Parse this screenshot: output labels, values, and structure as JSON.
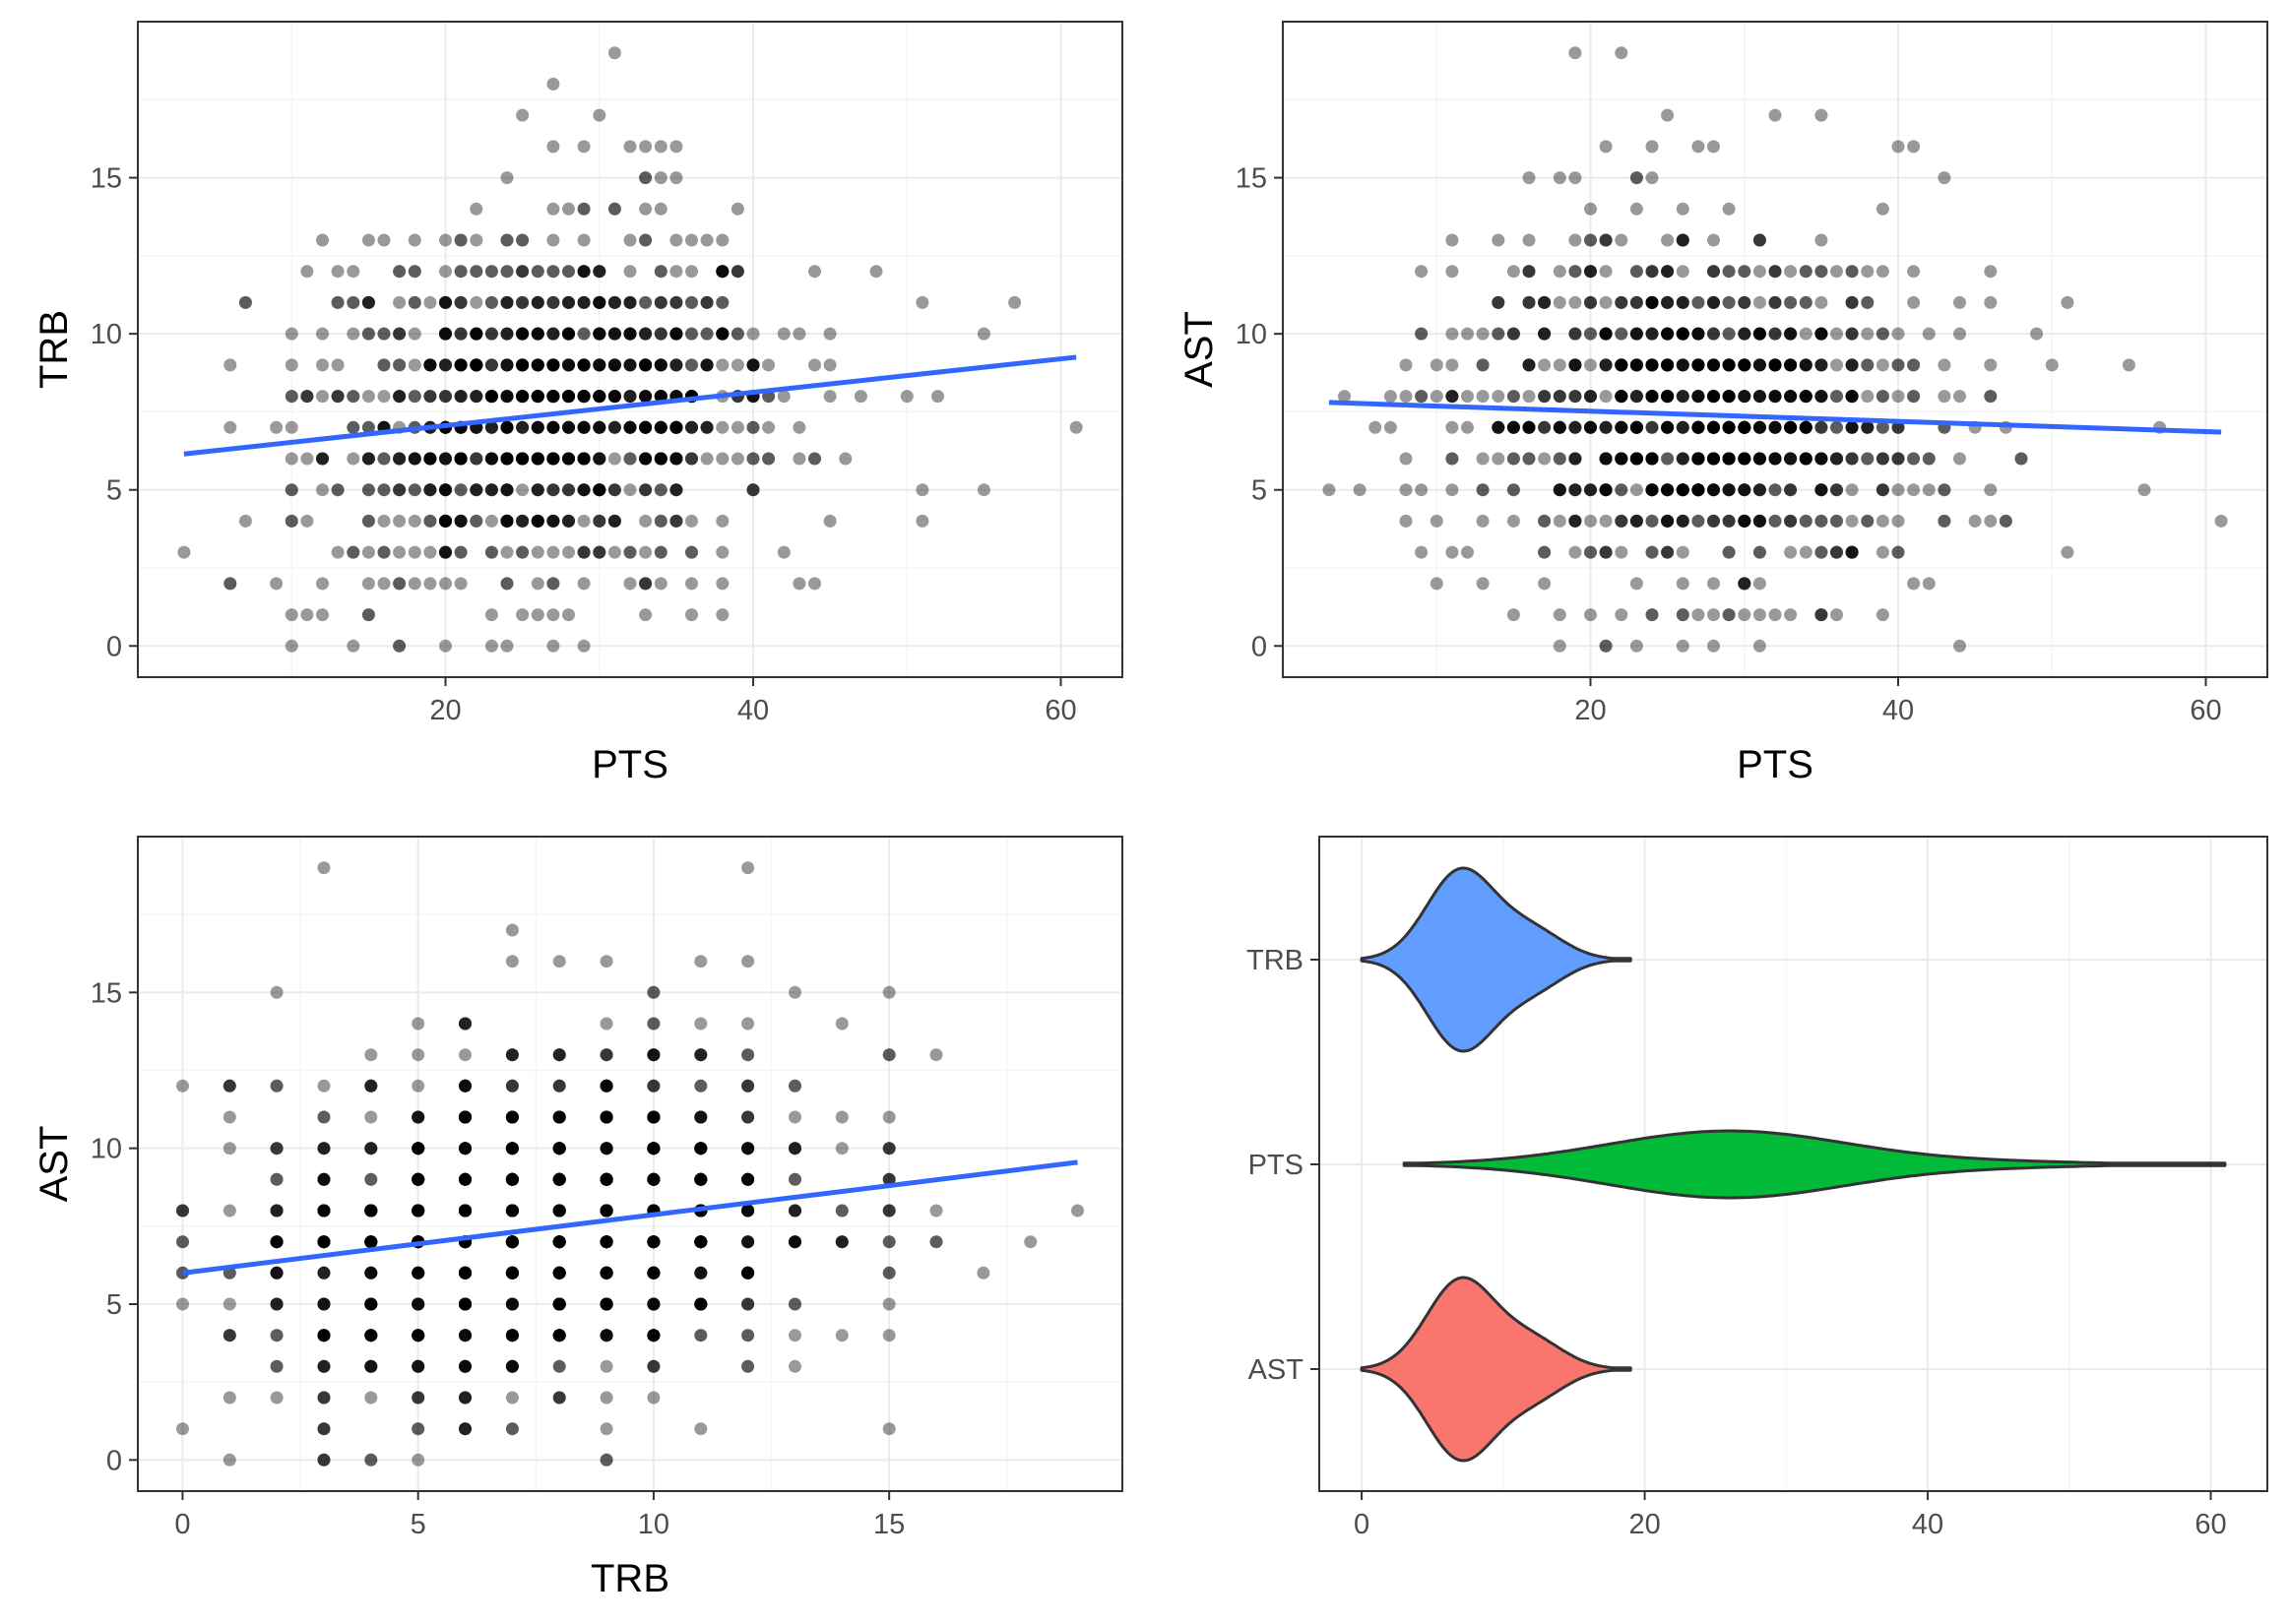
{
  "colors": {
    "points": "#000000",
    "smooth_line": "#3366FF",
    "grid_major": "#EBEBEB",
    "grid_minor": "#F5F5F5",
    "panel_border": "#333333",
    "violin_TRB": "#619CFF",
    "violin_PTS": "#00BA38",
    "violin_AST": "#F8766D"
  },
  "chart_data": [
    {
      "type": "scatter",
      "xlabel": "PTS",
      "ylabel": "TRB",
      "xlim": [
        0,
        64
      ],
      "ylim": [
        -1,
        20
      ],
      "xticks": [
        20,
        40,
        60
      ],
      "yticks": [
        0,
        5,
        10,
        15
      ],
      "grid": true,
      "point_alpha": 0.4,
      "trend_line": {
        "x": [
          3,
          61
        ],
        "y": [
          6.15,
          9.25
        ]
      },
      "note": "dense cloud of discrete-valued points; representative sample of extremes listed",
      "points": [
        [
          31,
          19
        ],
        [
          27,
          18
        ],
        [
          25,
          17
        ],
        [
          30,
          17
        ],
        [
          27,
          16
        ],
        [
          29,
          16
        ],
        [
          32,
          16
        ],
        [
          33,
          16
        ],
        [
          34,
          16
        ],
        [
          35,
          16
        ],
        [
          33,
          15
        ],
        [
          34,
          15
        ],
        [
          24,
          15
        ],
        [
          12,
          13
        ],
        [
          13,
          12
        ],
        [
          14,
          12
        ],
        [
          7,
          11
        ],
        [
          10,
          8
        ],
        [
          11,
          8
        ],
        [
          12,
          9
        ],
        [
          3,
          3
        ],
        [
          6,
          2
        ],
        [
          9,
          2
        ],
        [
          10,
          1
        ],
        [
          15,
          1
        ],
        [
          14,
          0
        ],
        [
          20,
          0
        ],
        [
          17,
          0
        ],
        [
          23,
          1
        ],
        [
          26,
          1
        ],
        [
          28,
          1
        ],
        [
          36,
          1
        ],
        [
          38,
          1
        ],
        [
          51,
          11
        ],
        [
          50,
          8
        ],
        [
          52,
          8
        ],
        [
          57,
          11
        ],
        [
          55,
          10
        ],
        [
          61,
          7
        ],
        [
          55,
          5
        ],
        [
          51,
          5
        ],
        [
          51,
          4
        ],
        [
          48,
          12
        ],
        [
          45,
          8
        ],
        [
          47,
          8
        ],
        [
          43,
          2
        ],
        [
          46,
          6
        ],
        [
          44,
          6
        ]
      ]
    },
    {
      "type": "scatter",
      "xlabel": "PTS",
      "ylabel": "AST",
      "xlim": [
        0,
        64
      ],
      "ylim": [
        -1,
        20
      ],
      "xticks": [
        20,
        40,
        60
      ],
      "yticks": [
        0,
        5,
        10,
        15
      ],
      "grid": true,
      "point_alpha": 0.4,
      "trend_line": {
        "x": [
          3,
          61
        ],
        "y": [
          7.8,
          6.85
        ]
      },
      "note": "dense cloud of discrete-valued points; representative sample of extremes listed",
      "points": [
        [
          19,
          19
        ],
        [
          22,
          19
        ],
        [
          25,
          17
        ],
        [
          32,
          17
        ],
        [
          35,
          17
        ],
        [
          21,
          16
        ],
        [
          24,
          16
        ],
        [
          27,
          16
        ],
        [
          28,
          16
        ],
        [
          40,
          16
        ],
        [
          41,
          16
        ],
        [
          3,
          5
        ],
        [
          4,
          8
        ],
        [
          6,
          7
        ],
        [
          7,
          7
        ],
        [
          8,
          9
        ],
        [
          8,
          6
        ],
        [
          10,
          2
        ],
        [
          13,
          2
        ],
        [
          11,
          3
        ],
        [
          21,
          0
        ],
        [
          23,
          0
        ],
        [
          22,
          1
        ],
        [
          26,
          1
        ],
        [
          31,
          1
        ],
        [
          32,
          1
        ],
        [
          36,
          1
        ],
        [
          39,
          1
        ],
        [
          51,
          11
        ],
        [
          50,
          9
        ],
        [
          55,
          9
        ],
        [
          57,
          7
        ],
        [
          56,
          5
        ],
        [
          61,
          4
        ],
        [
          51,
          3
        ],
        [
          48,
          6
        ],
        [
          47,
          4
        ],
        [
          43,
          15
        ],
        [
          44,
          11
        ],
        [
          46,
          11
        ]
      ]
    },
    {
      "type": "scatter",
      "xlabel": "TRB",
      "ylabel": "AST",
      "xlim": [
        -0.95,
        19.95
      ],
      "ylim": [
        -1,
        20
      ],
      "xticks": [
        0,
        5,
        10,
        15
      ],
      "yticks": [
        0,
        5,
        10,
        15
      ],
      "grid": true,
      "point_alpha": 0.4,
      "trend_line": {
        "x": [
          0,
          19
        ],
        "y": [
          6.0,
          9.55
        ]
      },
      "note": "dense integer-grid cloud; representative sample of extremes listed",
      "points": [
        [
          3,
          19
        ],
        [
          12,
          19
        ],
        [
          7,
          17
        ],
        [
          7,
          16
        ],
        [
          8,
          16
        ],
        [
          9,
          16
        ],
        [
          11,
          16
        ],
        [
          12,
          16
        ],
        [
          0,
          12
        ],
        [
          0,
          7
        ],
        [
          0,
          6
        ],
        [
          1,
          0
        ],
        [
          4,
          0
        ],
        [
          1,
          12
        ],
        [
          2,
          15
        ],
        [
          15,
          13
        ],
        [
          16,
          13
        ],
        [
          15,
          10
        ],
        [
          17,
          6
        ],
        [
          18,
          7
        ],
        [
          19,
          8
        ],
        [
          16,
          7
        ],
        [
          14,
          4
        ],
        [
          3,
          1
        ],
        [
          5,
          1
        ],
        [
          6,
          1
        ],
        [
          11,
          1
        ],
        [
          12,
          3
        ],
        [
          13,
          15
        ]
      ]
    },
    {
      "type": "violin",
      "orientation": "horizontal",
      "categories": [
        "TRB",
        "PTS",
        "AST"
      ],
      "xlim": [
        -3,
        64
      ],
      "xticks": [
        0,
        20,
        40,
        60
      ],
      "grid": true,
      "series": [
        {
          "name": "TRB",
          "range": [
            0,
            19
          ],
          "mode": 7
        },
        {
          "name": "PTS",
          "range": [
            3,
            61
          ],
          "mode": 26
        },
        {
          "name": "AST",
          "range": [
            0,
            19
          ],
          "mode": 7
        }
      ]
    }
  ]
}
